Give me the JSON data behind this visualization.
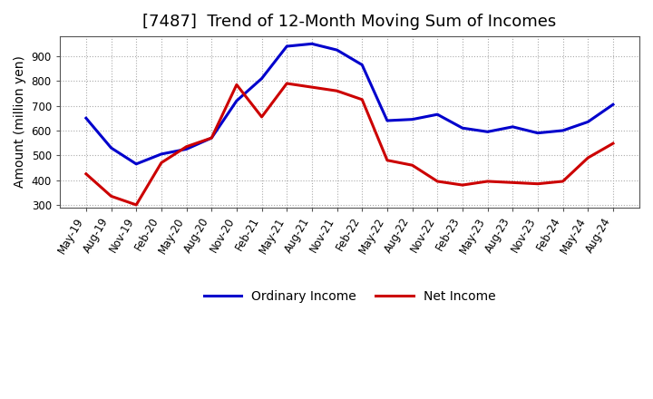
{
  "title": "[7487]  Trend of 12-Month Moving Sum of Incomes",
  "ylabel": "Amount (million yen)",
  "ylim": [
    290,
    980
  ],
  "yticks": [
    300,
    400,
    500,
    600,
    700,
    800,
    900
  ],
  "x_labels": [
    "May-19",
    "Aug-19",
    "Nov-19",
    "Feb-20",
    "May-20",
    "Aug-20",
    "Nov-20",
    "Feb-21",
    "May-21",
    "Aug-21",
    "Nov-21",
    "Feb-22",
    "May-22",
    "Aug-22",
    "Nov-22",
    "Feb-23",
    "May-23",
    "Aug-23",
    "Nov-23",
    "Feb-24",
    "May-24",
    "Aug-24"
  ],
  "ordinary_income": [
    650,
    530,
    465,
    505,
    525,
    570,
    720,
    810,
    940,
    950,
    925,
    865,
    640,
    645,
    665,
    610,
    595,
    615,
    590,
    600,
    635,
    705
  ],
  "net_income": [
    425,
    335,
    300,
    470,
    535,
    570,
    785,
    655,
    790,
    775,
    760,
    725,
    480,
    460,
    395,
    380,
    395,
    390,
    385,
    395,
    490,
    548
  ],
  "ordinary_color": "#0000cc",
  "net_color": "#cc0000",
  "grid_color": "#aaaaaa",
  "background_color": "#ffffff",
  "title_fontsize": 13,
  "label_fontsize": 10,
  "tick_fontsize": 8.5,
  "legend_fontsize": 10
}
